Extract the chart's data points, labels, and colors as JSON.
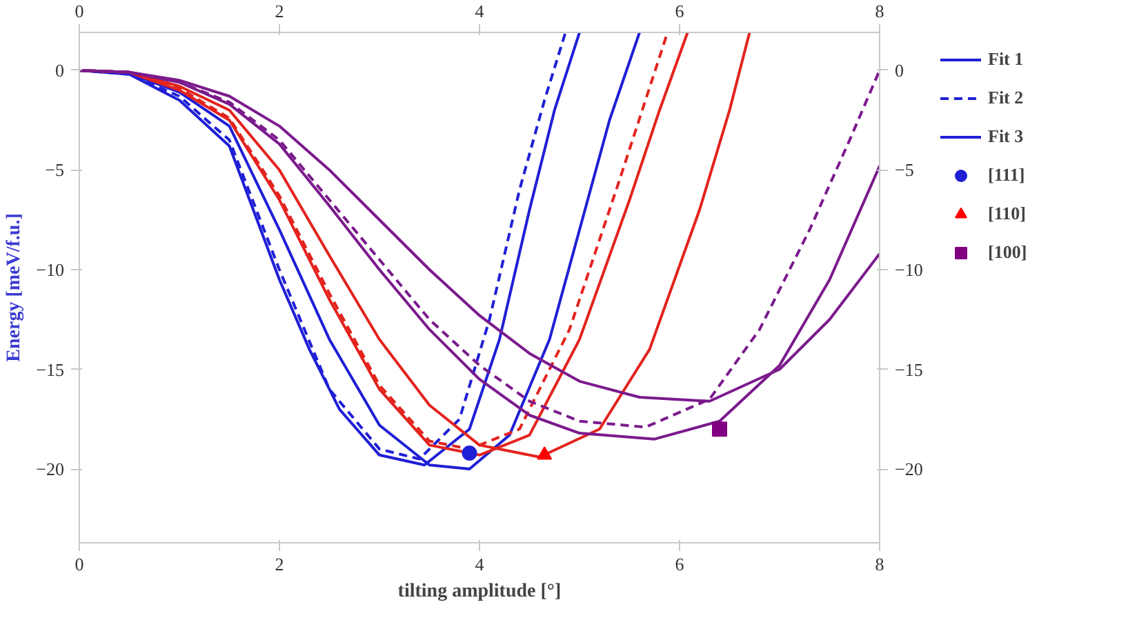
{
  "chart_data": {
    "type": "line",
    "xlabel": "tilting amplitude [°]",
    "ylabel": "Energy [meV/f.u.]",
    "xlim": [
      0,
      8
    ],
    "xticks": [
      0,
      2,
      4,
      6,
      8
    ],
    "x2lim": [
      0,
      8
    ],
    "x2ticks": [
      0,
      2,
      4,
      6,
      8
    ],
    "ylim": [
      -23.7,
      1.9
    ],
    "yticks": [
      -20,
      -15,
      -10,
      -5,
      0
    ],
    "y2lim": [
      -23.7,
      1.9
    ],
    "y2ticks": [
      -20,
      -15,
      -10,
      -5,
      0
    ],
    "grid": false,
    "legend": "right",
    "series": [
      {
        "name": "Fit 1",
        "color": "#1f1fd6",
        "line_style": "solid",
        "x": [
          0,
          0.5,
          1,
          1.5,
          2,
          2.3,
          2.6,
          3,
          3.45,
          3.9,
          4.2,
          4.5,
          4.75,
          5.0
        ],
        "values": [
          0,
          -0.2,
          -1.5,
          -3.8,
          -10.5,
          -14,
          -17,
          -19.3,
          -19.8,
          -18,
          -13.5,
          -7,
          -2,
          1.9
        ]
      },
      {
        "name": "Fit 2",
        "color": "#1f1fd6",
        "line_style": "dashed",
        "x": [
          0,
          0.5,
          1,
          1.5,
          2,
          2.5,
          3,
          3.4,
          3.8,
          4.1,
          4.4,
          4.65,
          4.86
        ],
        "values": [
          0,
          -0.2,
          -1.3,
          -3.5,
          -10.0,
          -16,
          -19.0,
          -19.5,
          -17.5,
          -12.5,
          -6,
          -1.5,
          1.9
        ]
      },
      {
        "name": "Fit 3",
        "color": "#1f1fd6",
        "line_style": "solid",
        "x": [
          0,
          0.5,
          1,
          1.5,
          2,
          2.5,
          3,
          3.5,
          3.9,
          4.3,
          4.7,
          5.0,
          5.3,
          5.6
        ],
        "values": [
          0,
          -0.15,
          -1.1,
          -2.8,
          -8.0,
          -13.5,
          -17.8,
          -19.8,
          -20.0,
          -18.3,
          -13.5,
          -8,
          -2.5,
          1.9
        ]
      },
      {
        "color": "#e3231e",
        "line_style": "solid",
        "x": [
          0,
          0.5,
          1,
          1.5,
          2,
          2.5,
          3,
          3.5,
          4.0,
          4.5,
          5.0,
          5.5,
          5.8,
          6.08
        ],
        "values": [
          0,
          -0.1,
          -1.0,
          -2.5,
          -6.5,
          -11.5,
          -16,
          -18.8,
          -19.3,
          -18.3,
          -13.5,
          -6.5,
          -2,
          1.9
        ]
      },
      {
        "color": "#e3231e",
        "line_style": "dashed",
        "x": [
          0,
          0.5,
          1,
          1.5,
          2,
          2.5,
          3,
          3.5,
          3.9,
          4.4,
          4.9,
          5.4,
          5.88
        ],
        "values": [
          0,
          -0.1,
          -0.9,
          -2.4,
          -6.3,
          -11.2,
          -15.8,
          -18.6,
          -19.0,
          -18.0,
          -13,
          -5.5,
          1.9
        ]
      },
      {
        "color": "#e3231e",
        "line_style": "solid",
        "x": [
          0,
          0.5,
          1,
          1.5,
          2,
          2.5,
          3,
          3.5,
          4,
          4.6,
          5.2,
          5.7,
          6.2,
          6.5,
          6.7
        ],
        "values": [
          0,
          -0.1,
          -0.8,
          -2.0,
          -5.0,
          -9.3,
          -13.5,
          -16.8,
          -18.8,
          -19.4,
          -18.0,
          -14,
          -7,
          -2,
          1.9
        ]
      },
      {
        "color": "#7b1a8c",
        "line_style": "dashed",
        "x": [
          0,
          0.5,
          1,
          1.5,
          2,
          2.5,
          3,
          3.5,
          4,
          4.5,
          5,
          5.66,
          6.3,
          6.8,
          7.3,
          7.7,
          8
        ],
        "values": [
          0,
          -0.1,
          -0.6,
          -1.6,
          -3.5,
          -6.5,
          -9.5,
          -12.5,
          -14.8,
          -16.6,
          -17.6,
          -17.9,
          -16.5,
          -13,
          -8,
          -3.5,
          0
        ]
      },
      {
        "color": "#7b1a8c",
        "line_style": "solid",
        "x": [
          0,
          0.5,
          1,
          1.5,
          2,
          2.5,
          3,
          3.5,
          4,
          4.5,
          5,
          5.75,
          6.4,
          7,
          7.5,
          8
        ],
        "values": [
          0,
          -0.1,
          -0.6,
          -1.7,
          -3.7,
          -6.8,
          -10,
          -13,
          -15.5,
          -17.3,
          -18.2,
          -18.5,
          -17.6,
          -14.8,
          -10.5,
          -4.8
        ]
      },
      {
        "color": "#7b1a8c",
        "line_style": "solid",
        "x": [
          0,
          0.5,
          1,
          1.5,
          2,
          2.5,
          3,
          3.5,
          4,
          4.5,
          5,
          5.6,
          6.3,
          7,
          7.5,
          8
        ],
        "values": [
          0,
          -0.1,
          -0.5,
          -1.3,
          -2.8,
          -5,
          -7.5,
          -10,
          -12.3,
          -14.2,
          -15.6,
          -16.4,
          -16.6,
          -15,
          -12.5,
          -9.2
        ]
      },
      {
        "name": "[111]",
        "type": "scatter",
        "marker": "circle",
        "color": "#1f1fd6",
        "x": [
          3.9
        ],
        "values": [
          -19.2
        ]
      },
      {
        "name": "[110]",
        "type": "scatter",
        "marker": "triangle",
        "color": "#ff0000",
        "x": [
          4.65
        ],
        "values": [
          -19.3
        ]
      },
      {
        "name": "[100]",
        "type": "scatter",
        "marker": "square",
        "color": "#800080",
        "x": [
          6.4
        ],
        "values": [
          -18.0
        ]
      }
    ]
  }
}
